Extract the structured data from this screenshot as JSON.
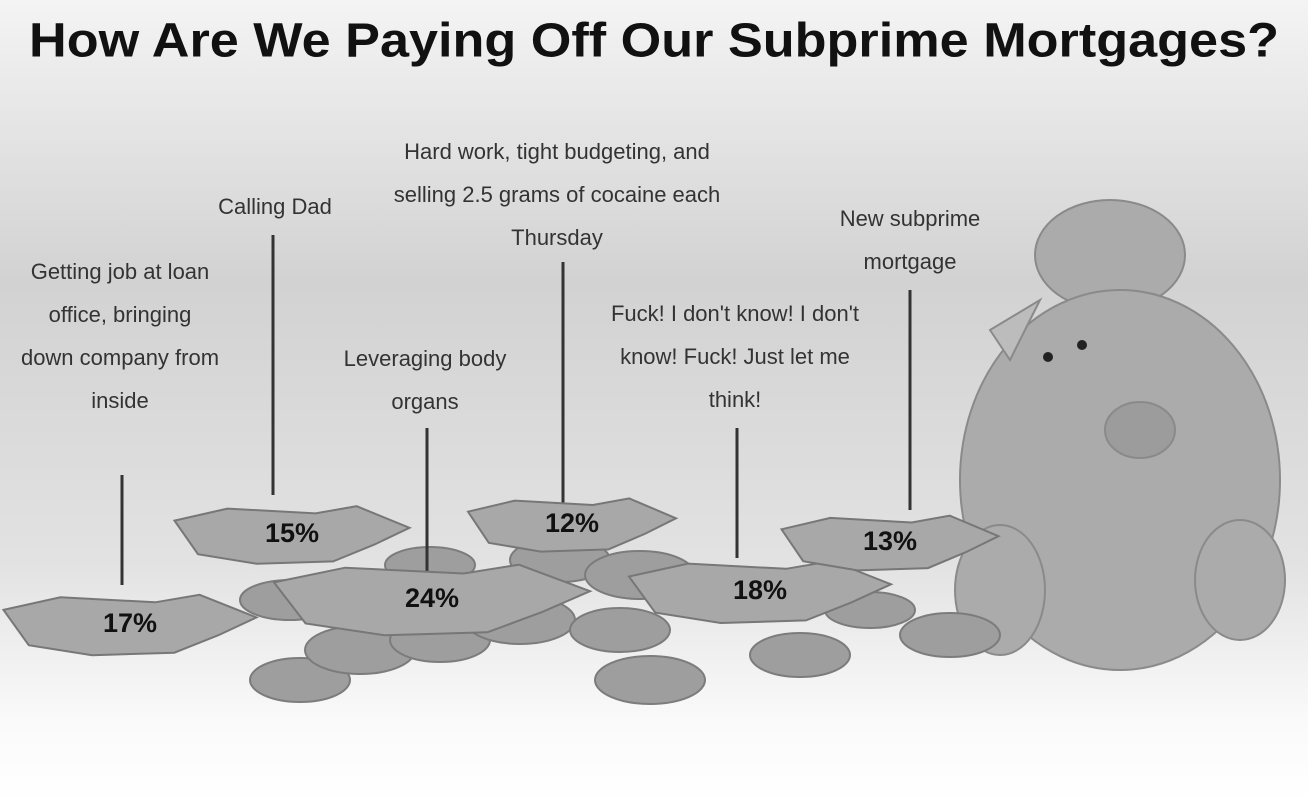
{
  "chart_data": {
    "type": "pictorial",
    "title": "How Are We Paying Off Our Subprime Mortgages?",
    "categories": [
      "Getting job at loan office, bringing down company from inside",
      "Calling Dad",
      "Leveraging body organs",
      "Hard work, tight budgeting, and selling 2.5 grams of cocaine each Thursday",
      "Fuck! I don't know! I don't know! Fuck! Just let me think!",
      "New subprime mortgage"
    ],
    "values": [
      17,
      15,
      24,
      12,
      18,
      13
    ],
    "value_labels": [
      "17%",
      "15%",
      "24%",
      "12%",
      "18%",
      "13%"
    ],
    "color": "#a8a8a8"
  }
}
